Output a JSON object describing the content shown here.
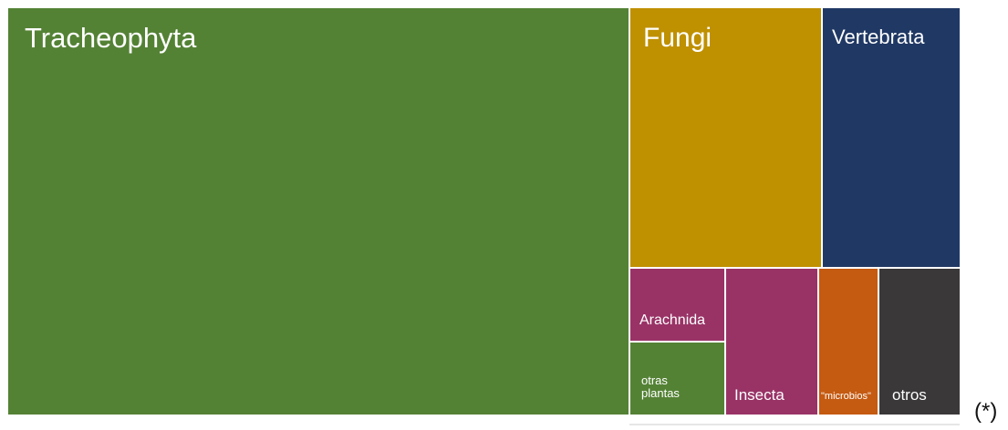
{
  "chart_data": {
    "type": "treemap",
    "items": [
      {
        "label": "Tracheophyta",
        "color": "#548235"
      },
      {
        "label": "Fungi",
        "color": "#bf9000"
      },
      {
        "label": "Vertebrata",
        "color": "#203864"
      },
      {
        "label": "Arachnida",
        "color": "#993366"
      },
      {
        "label": "otras plantas",
        "color": "#548235"
      },
      {
        "label": "Insecta",
        "color": "#993366"
      },
      {
        "label": "\"microbios\"",
        "color": "#c55a11"
      },
      {
        "label": "otros",
        "color": "#3a3838"
      }
    ]
  },
  "footnote": "(*)"
}
